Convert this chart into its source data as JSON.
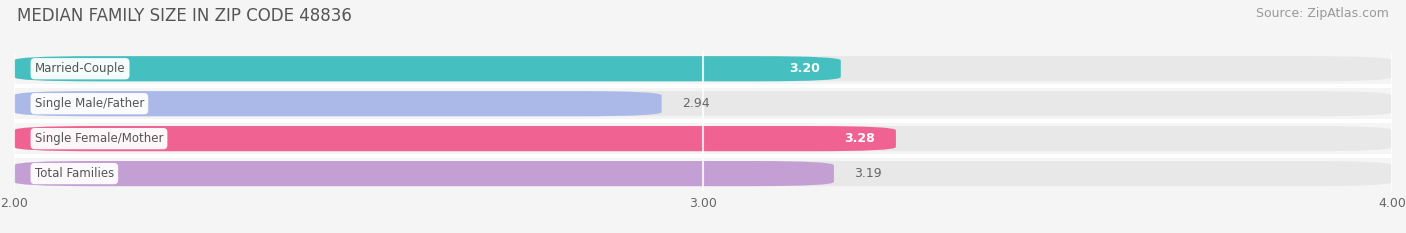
{
  "title": "MEDIAN FAMILY SIZE IN ZIP CODE 48836",
  "source": "Source: ZipAtlas.com",
  "categories": [
    "Married-Couple",
    "Single Male/Father",
    "Single Female/Mother",
    "Total Families"
  ],
  "values": [
    3.2,
    2.94,
    3.28,
    3.19
  ],
  "bar_colors": [
    "#45bfbf",
    "#aab9e8",
    "#f06292",
    "#c49fd4"
  ],
  "value_in_bar": [
    true,
    false,
    true,
    false
  ],
  "value_label_color_in": "#ffffff",
  "value_label_color_out": "#666666",
  "xmin": 2.0,
  "xmax": 4.0,
  "xticks": [
    2.0,
    3.0,
    4.0
  ],
  "xtick_labels": [
    "2.00",
    "3.00",
    "4.00"
  ],
  "background_color": "#f5f5f5",
  "bar_bg_color": "#e8e8e8",
  "separator_color": "#ffffff",
  "label_box_color": "#ffffff",
  "label_text_color": "#555555",
  "title_fontsize": 12,
  "source_fontsize": 9,
  "bar_height": 0.72,
  "bar_gap": 0.28,
  "rounding": 0.12
}
